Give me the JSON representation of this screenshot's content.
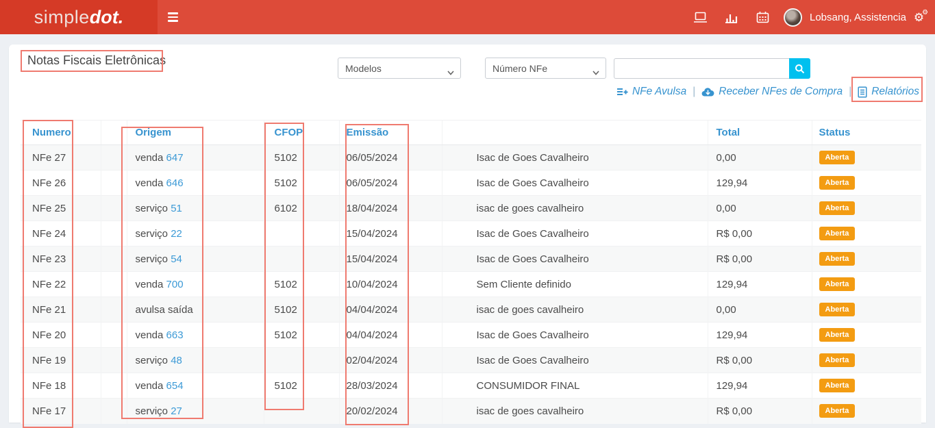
{
  "header": {
    "logo_light": "simple",
    "logo_bold": "dot.",
    "nav_icons": [
      "laptop-icon",
      "bar-chart-icon",
      "calendar-icon"
    ],
    "settings_icon": "cogs-icon",
    "user_name": "Lobsang, Assistencia"
  },
  "page": {
    "title": "Notas Fiscais Eletrônicas"
  },
  "filters": {
    "modelos_label": "Modelos",
    "numero_nfe_label": "Número NFe",
    "search_value": ""
  },
  "actions": {
    "separator": "|",
    "items": [
      {
        "label": "NFe Avulsa",
        "icon": "list-plus-icon"
      },
      {
        "label": "Receber NFes de Compra",
        "icon": "cloud-download-icon"
      },
      {
        "label": "Relatórios",
        "icon": "document-icon"
      }
    ]
  },
  "table": {
    "columns": {
      "numero": "Numero",
      "blank": "",
      "origem": "Origem",
      "cfop": "CFOP",
      "emissao": "Emissão",
      "cliente": "",
      "total": "Total",
      "status": "Status"
    },
    "rows": [
      {
        "numero": "NFe 27",
        "origem": "venda",
        "origem_link": "647",
        "cfop": "5102",
        "emissao": "06/05/2024",
        "cliente": "Isac de Goes Cavalheiro",
        "total": "0,00",
        "status": "Aberta"
      },
      {
        "numero": "NFe 26",
        "origem": "venda",
        "origem_link": "646",
        "cfop": "5102",
        "emissao": "06/05/2024",
        "cliente": "Isac de Goes Cavalheiro",
        "total": "129,94",
        "status": "Aberta"
      },
      {
        "numero": "NFe 25",
        "origem": "serviço",
        "origem_link": "51",
        "cfop": "6102",
        "emissao": "18/04/2024",
        "cliente": "isac de goes cavalheiro",
        "total": "0,00",
        "status": "Aberta"
      },
      {
        "numero": "NFe 24",
        "origem": "serviço",
        "origem_link": "22",
        "cfop": "",
        "emissao": "15/04/2024",
        "cliente": "Isac de Goes Cavalheiro",
        "total": "R$ 0,00",
        "status": "Aberta"
      },
      {
        "numero": "NFe 23",
        "origem": "serviço",
        "origem_link": "54",
        "cfop": "",
        "emissao": "15/04/2024",
        "cliente": "Isac de Goes Cavalheiro",
        "total": "R$ 0,00",
        "status": "Aberta"
      },
      {
        "numero": "NFe 22",
        "origem": "venda",
        "origem_link": "700",
        "cfop": "5102",
        "emissao": "10/04/2024",
        "cliente": "Sem Cliente definido",
        "total": "129,94",
        "status": "Aberta"
      },
      {
        "numero": "NFe 21",
        "origem": "avulsa saída",
        "origem_link": "",
        "cfop": "5102",
        "emissao": "04/04/2024",
        "cliente": "isac de goes cavalheiro",
        "total": "0,00",
        "status": "Aberta"
      },
      {
        "numero": "NFe 20",
        "origem": "venda",
        "origem_link": "663",
        "cfop": "5102",
        "emissao": "04/04/2024",
        "cliente": "Isac de Goes Cavalheiro",
        "total": "129,94",
        "status": "Aberta"
      },
      {
        "numero": "NFe 19",
        "origem": "serviço",
        "origem_link": "48",
        "cfop": "",
        "emissao": "02/04/2024",
        "cliente": "Isac de Goes Cavalheiro",
        "total": "R$ 0,00",
        "status": "Aberta"
      },
      {
        "numero": "NFe 18",
        "origem": "venda",
        "origem_link": "654",
        "cfop": "5102",
        "emissao": "28/03/2024",
        "cliente": "CONSUMIDOR FINAL",
        "total": "129,94",
        "status": "Aberta"
      },
      {
        "numero": "NFe 17",
        "origem": "serviço",
        "origem_link": "27",
        "cfop": "",
        "emissao": "20/02/2024",
        "cliente": "isac de goes cavalheiro",
        "total": "R$ 0,00",
        "status": "Aberta"
      }
    ]
  },
  "colors": {
    "navbar_red": "#dd4b39",
    "logo_red": "#d53a26",
    "link_blue": "#3793cf",
    "badge_orange": "#f39c12",
    "search_cyan": "#00c0ef",
    "annotation_red": "#ef7a6f",
    "page_background": "#edf0f4"
  }
}
